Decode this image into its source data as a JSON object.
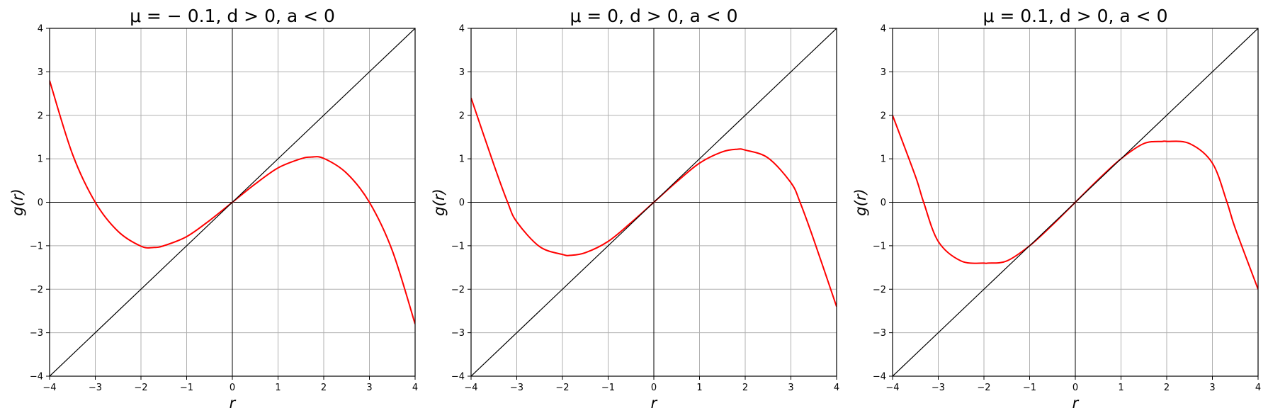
{
  "colors": {
    "curve": "#ff0000",
    "diagonal": "#000000",
    "axis_lines": "#000000",
    "grid": "#b0b0b0",
    "frame": "#000000"
  },
  "chart_data": [
    {
      "type": "line",
      "title": "μ = − 0.1, d > 0, a < 0",
      "xlabel": "r",
      "ylabel": "g(r)",
      "xlim": [
        -4,
        4
      ],
      "ylim": [
        -4,
        4
      ],
      "xticks": [
        -4,
        -3,
        -2,
        -1,
        0,
        1,
        2,
        3,
        4
      ],
      "yticks": [
        -4,
        -3,
        -2,
        -1,
        0,
        1,
        2,
        3,
        4
      ],
      "xtick_labels": [
        "−4",
        "−3",
        "−2",
        "−1",
        "0",
        "1",
        "2",
        "3",
        "4"
      ],
      "ytick_labels": [
        "−4",
        "−3",
        "−2",
        "−1",
        "0",
        "1",
        "2",
        "3",
        "4"
      ],
      "grid": true,
      "series": [
        {
          "color": "#ff0000",
          "x": [
            -4,
            -3.5,
            -3,
            -2.5,
            -2,
            -1.73,
            -1.5,
            -1,
            -0.5,
            0,
            0.5,
            1,
            1.5,
            1.73,
            2,
            2.5,
            3,
            3.5,
            4
          ],
          "y": [
            2.8,
            1.11,
            0,
            -0.67,
            -1.01,
            -1.04,
            -1.0,
            -0.79,
            -0.42,
            0,
            0.42,
            0.79,
            1.0,
            1.04,
            1.01,
            0.67,
            0,
            -1.11,
            -2.8
          ]
        },
        {
          "color": "#000000",
          "x": [
            -4,
            4
          ],
          "y": [
            -4,
            4
          ]
        }
      ]
    },
    {
      "type": "line",
      "title": "μ = 0, d > 0, a < 0",
      "xlabel": "r",
      "ylabel": "g(r)",
      "xlim": [
        -4,
        4
      ],
      "ylim": [
        -4,
        4
      ],
      "xticks": [
        -4,
        -3,
        -2,
        -1,
        0,
        1,
        2,
        3,
        4
      ],
      "yticks": [
        -4,
        -3,
        -2,
        -1,
        0,
        1,
        2,
        3,
        4
      ],
      "xtick_labels": [
        "−4",
        "−3",
        "−2",
        "−1",
        "0",
        "1",
        "2",
        "3",
        "4"
      ],
      "ytick_labels": [
        "−4",
        "−3",
        "−2",
        "−1",
        "0",
        "1",
        "2",
        "3",
        "4"
      ],
      "grid": true,
      "series": [
        {
          "color": "#ff0000",
          "x": [
            -4,
            -3.5,
            -3.2,
            -3,
            -2.5,
            -2,
            -1.83,
            -1.5,
            -1,
            -0.5,
            0,
            0.5,
            1,
            1.5,
            1.83,
            2,
            2.5,
            3,
            3.2,
            3.5,
            4
          ],
          "y": [
            2.4,
            0.86,
            0,
            -0.45,
            -1.02,
            -1.2,
            -1.22,
            -1.16,
            -0.9,
            -0.47,
            0,
            0.47,
            0.9,
            1.16,
            1.22,
            1.2,
            1.02,
            0.45,
            0,
            -0.86,
            -2.4
          ]
        },
        {
          "color": "#000000",
          "x": [
            -4,
            4
          ],
          "y": [
            -4,
            4
          ]
        }
      ]
    },
    {
      "type": "line",
      "title": "μ = 0.1, d > 0, a < 0",
      "xlabel": "r",
      "ylabel": "g(r)",
      "xlim": [
        -4,
        4
      ],
      "ylim": [
        -4,
        4
      ],
      "xticks": [
        -4,
        -3,
        -2,
        -1,
        0,
        1,
        2,
        3,
        4
      ],
      "yticks": [
        -4,
        -3,
        -2,
        -1,
        0,
        1,
        2,
        3,
        4
      ],
      "xtick_labels": [
        "−4",
        "−3",
        "−2",
        "−1",
        "0",
        "1",
        "2",
        "3",
        "4"
      ],
      "ytick_labels": [
        "−4",
        "−3",
        "−2",
        "−1",
        "0",
        "1",
        "2",
        "3",
        "4"
      ],
      "grid": true,
      "series": [
        {
          "color": "#ff0000",
          "x": [
            -4,
            -3.5,
            -3.32,
            -3,
            -2.5,
            -2,
            -1.91,
            -1.5,
            -1,
            -0.5,
            0,
            0.5,
            1,
            1.5,
            1.91,
            2,
            2.5,
            3,
            3.32,
            3.5,
            4
          ],
          "y": [
            2.0,
            0.6,
            0,
            -0.9,
            -1.35,
            -1.4,
            -1.4,
            -1.35,
            -1.0,
            -0.52,
            0,
            0.52,
            1.0,
            1.35,
            1.4,
            1.4,
            1.35,
            0.9,
            0,
            -0.6,
            -2.0
          ]
        },
        {
          "color": "#000000",
          "x": [
            -4,
            4
          ],
          "y": [
            -4,
            4
          ]
        }
      ]
    }
  ]
}
